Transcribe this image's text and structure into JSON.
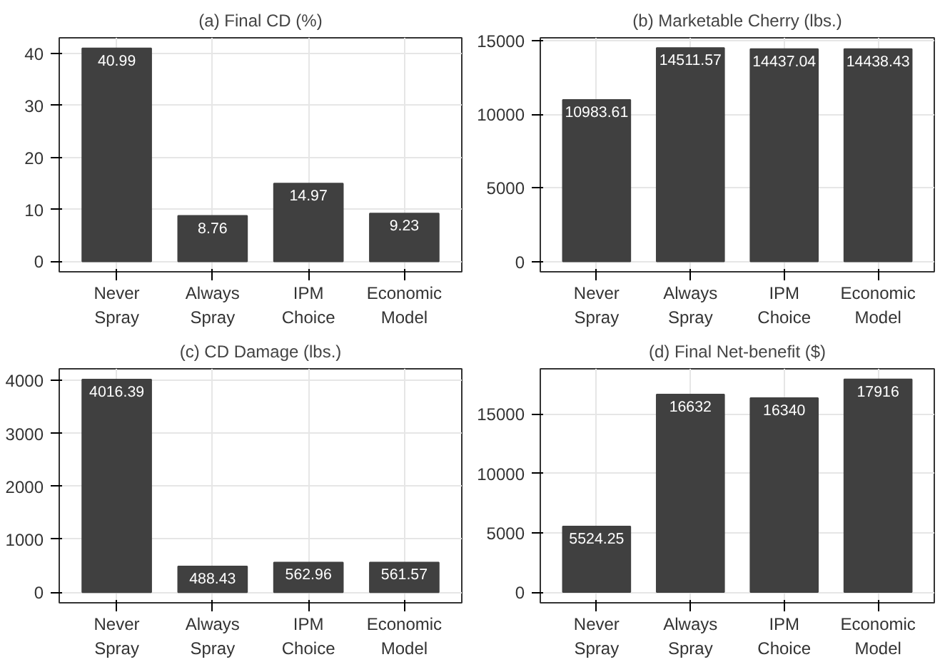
{
  "chart_data": [
    {
      "type": "bar",
      "title": "(a) Final CD (%)",
      "categories": [
        "Never\nSpray",
        "Always\nSpray",
        "IPM\nChoice",
        "Economic\nModel"
      ],
      "values": [
        40.99,
        8.76,
        14.97,
        9.23
      ],
      "color": "#404040",
      "ylim": [
        -2,
        43
      ],
      "yticks": [
        0,
        10,
        20,
        30,
        40
      ],
      "grid": true,
      "data_labels": true
    },
    {
      "type": "bar",
      "title": "(b) Marketable Cherry (lbs.)",
      "categories": [
        "Never\nSpray",
        "Always\nSpray",
        "IPM\nChoice",
        "Economic\nModel"
      ],
      "values": [
        10983.61,
        14511.57,
        14437.04,
        14438.43
      ],
      "color": "#404040",
      "ylim": [
        -700,
        15200
      ],
      "yticks": [
        0,
        5000,
        10000,
        15000
      ],
      "grid": true,
      "data_labels": true
    },
    {
      "type": "bar",
      "title": "(c) CD Damage (lbs.)",
      "categories": [
        "Never\nSpray",
        "Always\nSpray",
        "IPM\nChoice",
        "Economic\nModel"
      ],
      "values": [
        4016.39,
        488.43,
        562.96,
        561.57
      ],
      "color": "#404040",
      "ylim": [
        -200,
        4220
      ],
      "yticks": [
        0,
        1000,
        2000,
        3000,
        4000
      ],
      "grid": true,
      "data_labels": true
    },
    {
      "type": "bar",
      "title": "(d) Final Net-benefit ($)",
      "categories": [
        "Never\nSpray",
        "Always\nSpray",
        "IPM\nChoice",
        "Economic\nModel"
      ],
      "values": [
        5524.25,
        16632,
        16340,
        17916
      ],
      "color": "#404040",
      "ylim": [
        -900,
        18800
      ],
      "yticks": [
        0,
        5000,
        10000,
        15000
      ],
      "grid": true,
      "data_labels": true
    }
  ]
}
